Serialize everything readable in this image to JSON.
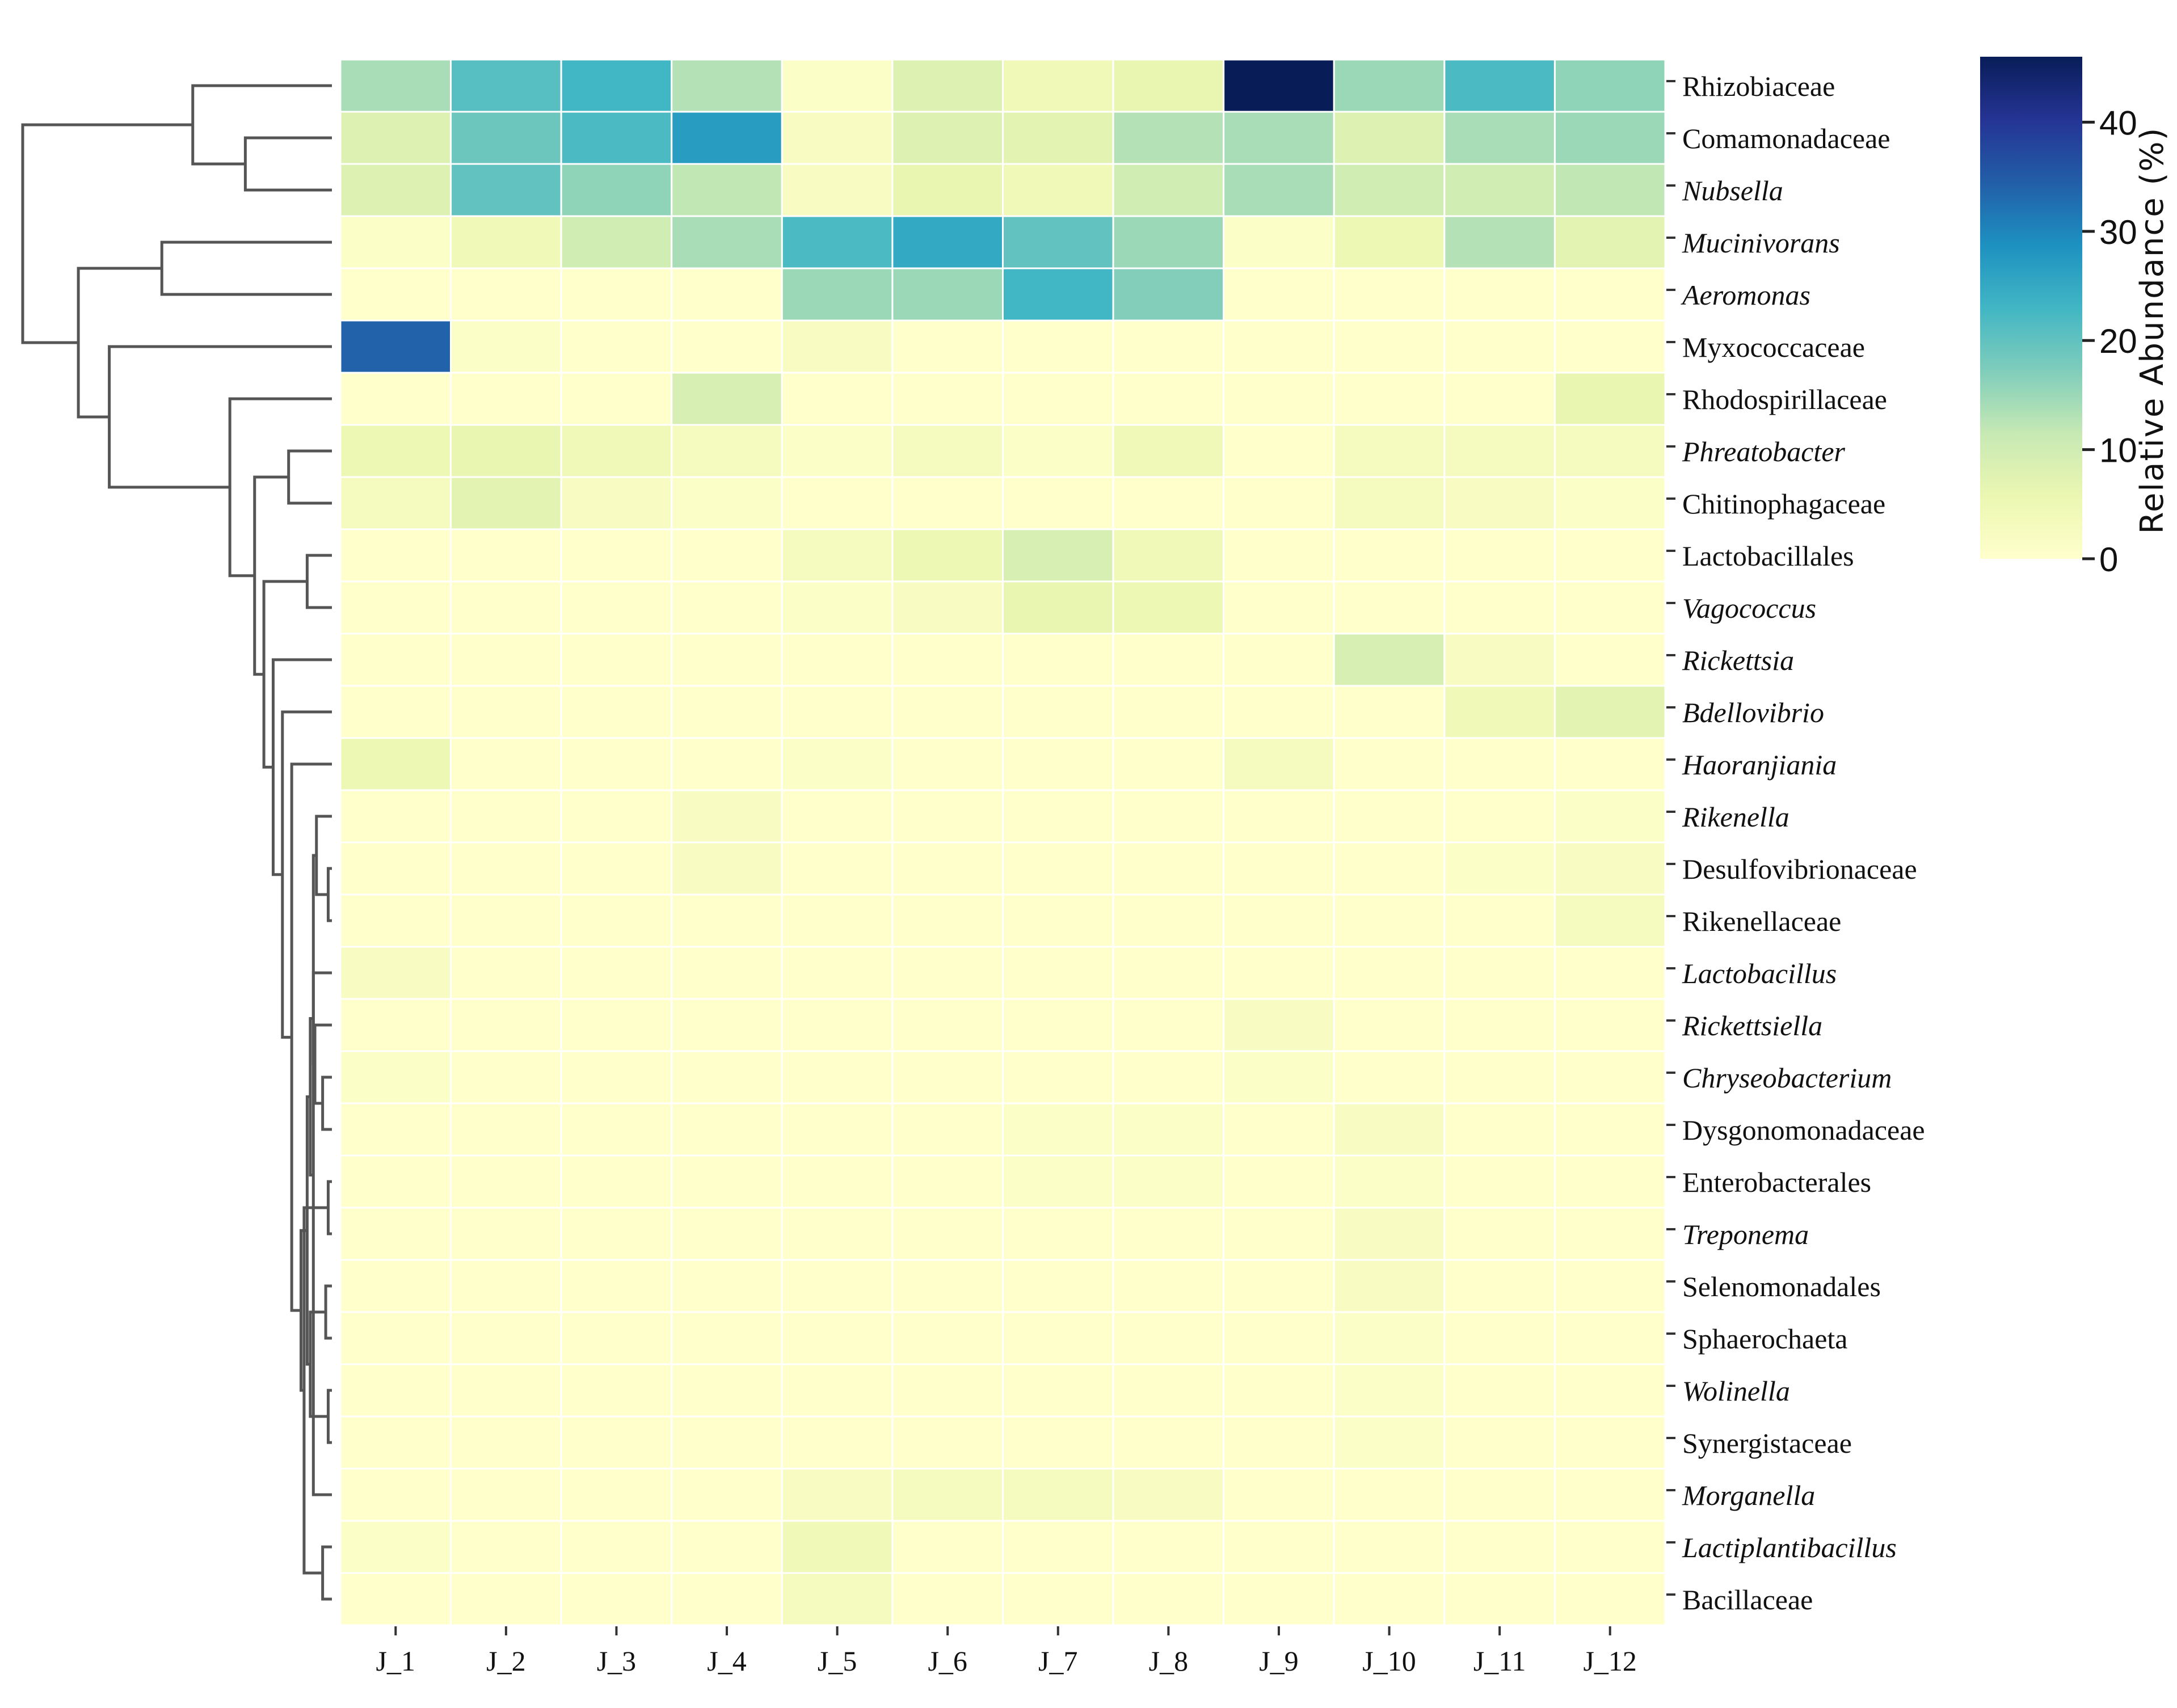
{
  "chart_data": {
    "type": "heatmap",
    "columns": [
      "J_1",
      "J_2",
      "J_3",
      "J_4",
      "J_5",
      "J_6",
      "J_7",
      "J_8",
      "J_9",
      "J_10",
      "J_11",
      "J_12"
    ],
    "rows": [
      {
        "label": "Rhizobiaceae",
        "italic": false,
        "values": [
          14,
          21,
          23,
          13,
          1,
          8,
          4,
          6,
          46,
          15,
          22,
          16
        ]
      },
      {
        "label": "Comamonadaceae",
        "italic": false,
        "values": [
          8,
          19,
          22,
          27,
          2,
          8,
          7,
          13,
          14,
          8,
          14,
          15
        ]
      },
      {
        "label": "Nubsella",
        "italic": true,
        "values": [
          8,
          20,
          16,
          12,
          2,
          6,
          4,
          10,
          14,
          10,
          10,
          12
        ]
      },
      {
        "label": "Mucinivorans",
        "italic": true,
        "values": [
          1,
          4,
          10,
          14,
          22,
          25,
          20,
          15,
          1,
          5,
          13,
          7
        ]
      },
      {
        "label": "Aeromonas",
        "italic": true,
        "values": [
          0,
          0,
          0,
          0,
          15,
          15,
          23,
          17,
          0,
          0,
          0,
          0
        ]
      },
      {
        "label": "Myxococcaceae",
        "italic": false,
        "values": [
          34,
          1,
          0,
          0,
          2,
          0,
          0,
          0,
          0,
          0,
          0,
          0
        ]
      },
      {
        "label": "Rhodospirillaceae",
        "italic": false,
        "values": [
          0,
          0,
          0,
          9,
          0,
          0,
          0,
          0,
          0,
          0,
          0,
          6
        ]
      },
      {
        "label": "Phreatobacter",
        "italic": true,
        "values": [
          5,
          6,
          4,
          3,
          1,
          3,
          1,
          4,
          0,
          3,
          3,
          3
        ]
      },
      {
        "label": "Chitinophagaceae",
        "italic": false,
        "values": [
          3,
          7,
          2,
          1,
          0,
          0,
          0,
          0,
          0,
          3,
          2,
          1
        ]
      },
      {
        "label": "Lactobacillales",
        "italic": false,
        "values": [
          0,
          0,
          0,
          0,
          3,
          5,
          9,
          4,
          0,
          0,
          0,
          0
        ]
      },
      {
        "label": "Vagococcus",
        "italic": true,
        "values": [
          0,
          0,
          0,
          0,
          1,
          2,
          6,
          5,
          0,
          0,
          0,
          0
        ]
      },
      {
        "label": "Rickettsia",
        "italic": true,
        "values": [
          0,
          0,
          0,
          0,
          0,
          0,
          0,
          0,
          0,
          9,
          2,
          0
        ]
      },
      {
        "label": "Bdellovibrio",
        "italic": true,
        "values": [
          0,
          0,
          0,
          0,
          0,
          0,
          0,
          0,
          0,
          0,
          4,
          7
        ]
      },
      {
        "label": "Haoranjiania",
        "italic": true,
        "values": [
          5,
          0,
          0,
          0,
          1,
          0,
          0,
          0,
          3,
          0,
          0,
          0
        ]
      },
      {
        "label": "Rikenella",
        "italic": true,
        "values": [
          0,
          0,
          0,
          2,
          0,
          0,
          0,
          0,
          0,
          0,
          0,
          1
        ]
      },
      {
        "label": "Desulfovibrionaceae",
        "italic": false,
        "values": [
          0,
          0,
          0,
          2,
          0,
          0,
          0,
          0,
          0,
          0,
          1,
          2
        ]
      },
      {
        "label": "Rikenellaceae",
        "italic": false,
        "values": [
          0,
          0,
          0,
          0,
          0,
          0,
          0,
          0,
          0,
          0,
          0,
          3
        ]
      },
      {
        "label": "Lactobacillus",
        "italic": true,
        "values": [
          2,
          0,
          0,
          0,
          0,
          0,
          0,
          0,
          0,
          0,
          0,
          0
        ]
      },
      {
        "label": "Rickettsiella",
        "italic": true,
        "values": [
          0,
          0,
          0,
          0,
          0,
          0,
          0,
          0,
          2,
          0,
          0,
          0
        ]
      },
      {
        "label": "Chryseobacterium",
        "italic": true,
        "values": [
          1,
          0,
          0,
          0,
          0,
          0,
          0,
          0,
          1,
          0,
          0,
          0
        ]
      },
      {
        "label": "Dysgonomonadaceae",
        "italic": false,
        "values": [
          0,
          0,
          0,
          0,
          0,
          0,
          1,
          1,
          0,
          2,
          0,
          0
        ]
      },
      {
        "label": "Enterobacterales",
        "italic": false,
        "values": [
          0,
          0,
          0,
          0,
          0,
          0,
          1,
          1,
          0,
          1,
          0,
          0
        ]
      },
      {
        "label": "Treponema",
        "italic": true,
        "values": [
          0,
          0,
          0,
          0,
          0,
          0,
          0,
          0,
          0,
          2,
          0,
          0
        ]
      },
      {
        "label": "Selenomonadales",
        "italic": false,
        "values": [
          0,
          0,
          0,
          0,
          0,
          0,
          0,
          0,
          0,
          2,
          0,
          0
        ]
      },
      {
        "label": "Sphaerochaeta",
        "italic": false,
        "values": [
          0,
          0,
          0,
          0,
          0,
          0,
          0,
          0,
          0,
          1,
          0,
          0
        ]
      },
      {
        "label": "Wolinella",
        "italic": true,
        "values": [
          0,
          0,
          0,
          0,
          0,
          0,
          0,
          0,
          0,
          1,
          0,
          0
        ]
      },
      {
        "label": "Synergistaceae",
        "italic": false,
        "values": [
          0,
          0,
          0,
          0,
          0,
          0,
          0,
          0,
          0,
          1,
          0,
          0
        ]
      },
      {
        "label": "Morganella",
        "italic": true,
        "values": [
          0,
          0,
          0,
          0,
          2,
          3,
          3,
          2,
          0,
          0,
          0,
          0
        ]
      },
      {
        "label": "Lactiplantibacillus",
        "italic": true,
        "values": [
          1,
          0,
          0,
          0,
          4,
          0,
          0,
          0,
          0,
          0,
          0,
          0
        ]
      },
      {
        "label": "Bacillaceae",
        "italic": false,
        "values": [
          0,
          0,
          0,
          0,
          3,
          0,
          0,
          0,
          0,
          0,
          0,
          0
        ]
      }
    ],
    "colorbar": {
      "label": "Relative Abundance (%)",
      "ticks": [
        0,
        10,
        20,
        30,
        40
      ],
      "range": [
        0,
        46
      ],
      "palette": "YlGnBu",
      "stops": [
        "#ffffcc",
        "#ebf7b1",
        "#c7e9b4",
        "#7fcdbb",
        "#41b6c4",
        "#1d91c0",
        "#225ea8",
        "#253494",
        "#081d58"
      ]
    },
    "row_dendrogram": {
      "position": "left",
      "merges": [
        [
          1,
          2
        ],
        [
          0,
          30
        ],
        [
          9,
          10
        ],
        [
          15,
          16
        ],
        [
          25,
          26
        ],
        [
          28,
          29
        ],
        [
          21,
          22
        ],
        [
          23,
          24
        ],
        [
          14,
          33
        ],
        [
          19,
          20
        ],
        [
          18,
          39
        ],
        [
          17,
          40
        ],
        [
          27,
          38
        ],
        [
          41,
          42
        ],
        [
          34,
          37
        ],
        [
          43,
          44
        ],
        [
          35,
          36
        ],
        [
          45,
          46
        ],
        [
          13,
          47
        ],
        [
          12,
          48
        ],
        [
          11,
          49
        ],
        [
          32,
          50
        ],
        [
          7,
          8
        ],
        [
          52,
          51
        ],
        [
          6,
          53
        ],
        [
          3,
          4
        ],
        [
          5,
          54
        ],
        [
          55,
          56
        ],
        [
          31,
          57
        ]
      ],
      "heights": [
        0.28,
        0.45,
        0.08,
        0.012,
        0.012,
        0.03,
        0.012,
        0.02,
        0.05,
        0.03,
        0.055,
        0.06,
        0.06,
        0.07,
        0.07,
        0.08,
        0.09,
        0.1,
        0.13,
        0.16,
        0.19,
        0.22,
        0.14,
        0.25,
        0.33,
        0.55,
        0.72,
        0.82,
        1.0
      ]
    }
  }
}
